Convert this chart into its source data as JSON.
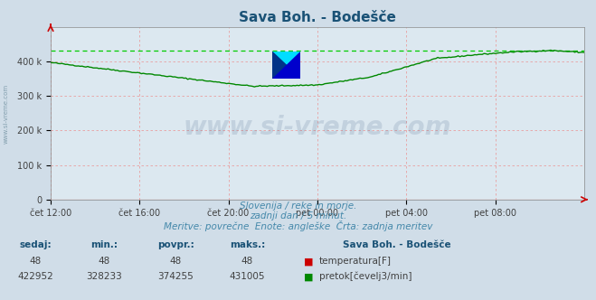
{
  "title": "Sava Boh. - Bodešče",
  "title_color": "#1a5276",
  "bg_color": "#d0dde8",
  "plot_bg_color": "#dce8f0",
  "flow_color": "#008800",
  "temp_color": "#cc0000",
  "dashed_line_color": "#00cc00",
  "dashed_line_value": 431005,
  "x_tick_labels": [
    "čet 12:00",
    "čet 16:00",
    "čet 20:00",
    "pet 00:00",
    "pet 04:00",
    "pet 08:00"
  ],
  "x_tick_positions": [
    0,
    48,
    96,
    144,
    192,
    240
  ],
  "ylim": [
    0,
    500000
  ],
  "yticks": [
    0,
    100000,
    200000,
    300000,
    400000
  ],
  "ytick_labels": [
    "0",
    "100 k",
    "200 k",
    "300 k",
    "400 k"
  ],
  "grid_color": "#e8a0a0",
  "watermark_text": "www.si-vreme.com",
  "watermark_color": "#1a3a6a",
  "watermark_alpha": 0.13,
  "side_text": "www.si-vreme.com",
  "side_text_color": "#7090a0",
  "sub_text1": "Slovenija / reke in morje.",
  "sub_text2": "zadnji dan / 5 minut.",
  "sub_text3": "Meritve: povrečne  Enote: angleške  Črta: zadnja meritev",
  "sub_text_color": "#4488aa",
  "legend_title": "Sava Boh. - Bodešče",
  "legend_color": "#1a5276",
  "table_headers": [
    "sedaj:",
    "min.:",
    "povpr.:",
    "maks.:"
  ],
  "table_header_color": "#1a5276",
  "table_temp_row": [
    "48",
    "48",
    "48",
    "48"
  ],
  "table_flow_row": [
    "422952",
    "328233",
    "374255",
    "431005"
  ],
  "table_value_color": "#404040",
  "n_points": 289,
  "arrow_color": "#cc0000",
  "logo_yellow": "#ffee00",
  "logo_cyan": "#00ddff",
  "logo_blue": "#0000cc",
  "logo_navy": "#003388"
}
